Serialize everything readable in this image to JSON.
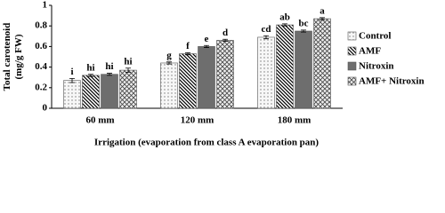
{
  "chart_data": {
    "type": "bar",
    "y_label": "Total carotenoid\n(mg/g FW)",
    "x_label": "Irrigation  (evaporation from class A evaporation pan)",
    "categories": [
      "60 mm",
      "120 mm",
      "180 mm"
    ],
    "series": [
      {
        "name": "Control",
        "color": "#f4f4f4",
        "pattern": "dots",
        "values": [
          0.27,
          0.44,
          0.69
        ],
        "errors": [
          0.02,
          0.01,
          0.015
        ],
        "letters": [
          "i",
          "g",
          "cd"
        ]
      },
      {
        "name": "AMF",
        "color": "#ffffff",
        "pattern": "diagonal",
        "values": [
          0.32,
          0.53,
          0.81
        ],
        "errors": [
          0.01,
          0.01,
          0.01
        ],
        "letters": [
          "hi",
          "f",
          "ab"
        ]
      },
      {
        "name": "Nitroxin",
        "color": "#6e6e6e",
        "pattern": "solid",
        "values": [
          0.33,
          0.6,
          0.75
        ],
        "errors": [
          0.01,
          0.01,
          0.01
        ],
        "letters": [
          "hi",
          "e",
          "bc"
        ]
      },
      {
        "name": "AMF+ Nitroxin",
        "color": "#e6e6e6",
        "pattern": "cross",
        "values": [
          0.37,
          0.66,
          0.87
        ],
        "errors": [
          0.02,
          0.01,
          0.01
        ],
        "letters": [
          "hi",
          "d",
          "a"
        ]
      }
    ],
    "ylim": [
      0,
      1
    ],
    "yticks": [
      0,
      0.2,
      0.4,
      0.6,
      0.8,
      1
    ],
    "grid": false,
    "legend": "right"
  }
}
